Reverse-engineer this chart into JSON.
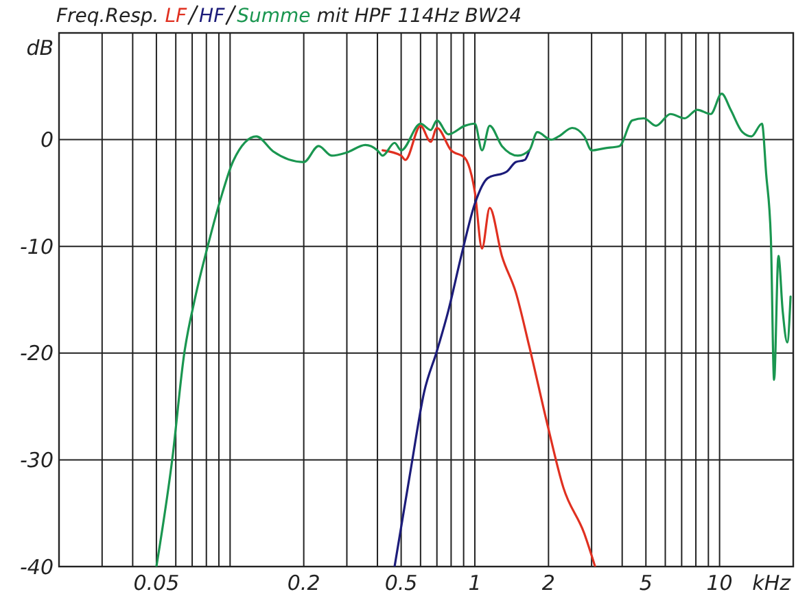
{
  "chart_data": {
    "type": "line",
    "title": "Freq.Resp.",
    "subtitle": "mit HPF 114Hz BW24",
    "xlabel": "kHz",
    "ylabel": "dB",
    "log": "x",
    "grid": true,
    "legend": "top",
    "marker": "none",
    "line_style": "solid",
    "xlim": [
      0.02,
      20
    ],
    "ylim": [
      -40,
      10
    ],
    "xticks": [
      {
        "value": 0.03,
        "label": null
      },
      {
        "value": 0.04,
        "label": null
      },
      0.05,
      {
        "value": 0.06,
        "label": null
      },
      {
        "value": 0.07,
        "label": null
      },
      {
        "value": 0.08,
        "label": null
      },
      {
        "value": 0.09,
        "label": null
      },
      {
        "value": 0.1,
        "label": null
      },
      0.2,
      {
        "value": 0.3,
        "label": null
      },
      {
        "value": 0.4,
        "label": null
      },
      0.5,
      {
        "value": 0.6,
        "label": null
      },
      {
        "value": 0.7,
        "label": null
      },
      {
        "value": 0.8,
        "label": null
      },
      {
        "value": 0.9,
        "label": null
      },
      1,
      2,
      {
        "value": 3,
        "label": null
      },
      {
        "value": 4,
        "label": null
      },
      5,
      {
        "value": 6,
        "label": null
      },
      {
        "value": 7,
        "label": null
      },
      {
        "value": 8,
        "label": null
      },
      {
        "value": 9,
        "label": null
      },
      10
    ],
    "yticks": [
      -40,
      -30,
      -20,
      -10,
      0
    ],
    "series": [
      {
        "name": "LF",
        "color": "#e03020",
        "x": [
          0.42,
          0.5,
          0.52,
          0.6,
          0.66,
          0.7,
          0.8,
          0.91,
          1.0,
          1.07,
          1.15,
          1.29,
          1.47,
          1.67,
          1.98,
          2.3,
          2.8,
          3.1
        ],
        "values": [
          -1.0,
          -1.5,
          -1.9,
          1.3,
          -0.2,
          1.1,
          -1.0,
          -1.7,
          -4.9,
          -10.2,
          -6.4,
          -10.9,
          -14.3,
          -19.4,
          -26.7,
          -32.6,
          -36.9,
          -40
        ]
      },
      {
        "name": "HF",
        "color": "#1c1c7a",
        "x": [
          0.47,
          0.55,
          0.62,
          0.7,
          0.78,
          0.88,
          1.0,
          1.13,
          1.35,
          1.47,
          1.6,
          1.67
        ],
        "values": [
          -40,
          -30.6,
          -23.7,
          -19.8,
          -16,
          -10.9,
          -6.0,
          -3.6,
          -3.0,
          -2.1,
          -1.9,
          -1.0
        ]
      },
      {
        "name": "Summe",
        "color": "#1a9650",
        "x": [
          0.05,
          0.058,
          0.065,
          0.072,
          0.081,
          0.093,
          0.103,
          0.128,
          0.15,
          0.2,
          0.23,
          0.26,
          0.3,
          0.357,
          0.4,
          0.42,
          0.47,
          0.5,
          0.6,
          0.66,
          0.7,
          0.78,
          0.91,
          1.0,
          1.07,
          1.15,
          1.29,
          1.5,
          1.67,
          1.8,
          2.05,
          2.2,
          2.5,
          2.8,
          3.0,
          3.4,
          3.9,
          4.4,
          4.9,
          5.5,
          6.3,
          7.2,
          8.1,
          9.2,
          10.2,
          11.1,
          12.4,
          13.5,
          14.9,
          15.5,
          16.2,
          16.7,
          17.4,
          18.1,
          18.9,
          19.5
        ],
        "values": [
          -40,
          -30,
          -20,
          -14.8,
          -10,
          -5,
          -2,
          0.3,
          -1.1,
          -2.1,
          -0.6,
          -1.5,
          -1.2,
          -0.5,
          -1.0,
          -1.5,
          -0.3,
          -1.0,
          1.5,
          0.9,
          1.8,
          0.5,
          1.3,
          1.5,
          -1.0,
          1.3,
          -0.6,
          -1.5,
          -1.0,
          0.7,
          0,
          0.3,
          1.1,
          0.3,
          -1.0,
          -0.8,
          -0.6,
          1.8,
          2.0,
          1.3,
          2.4,
          2.0,
          2.8,
          2.4,
          4.3,
          2.8,
          0.7,
          0.3,
          1.5,
          -3.2,
          -9.2,
          -22.5,
          -10.9,
          -16,
          -19,
          -14.7
        ]
      }
    ]
  }
}
